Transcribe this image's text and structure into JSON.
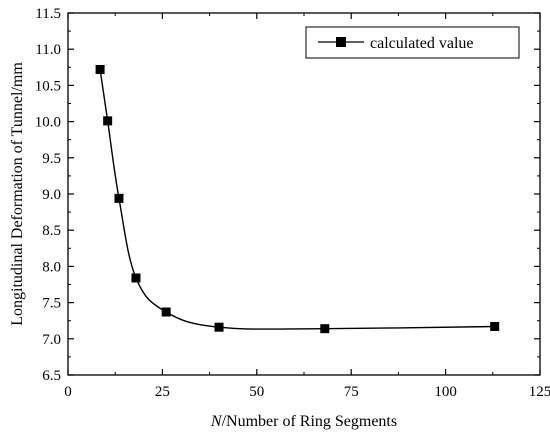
{
  "chart_data": {
    "type": "scatter",
    "title": "",
    "xlabel_italic": "N",
    "xlabel_rest": "/Number of Ring Segments",
    "ylabel": "Longitudinal Deformation of Tunnel/mm",
    "xlim": [
      0,
      125
    ],
    "ylim": [
      6.5,
      11.5
    ],
    "xticks": [
      0,
      25,
      50,
      75,
      100,
      125
    ],
    "yticks": [
      6.5,
      7.0,
      7.5,
      8.0,
      8.5,
      9.0,
      9.5,
      10.0,
      10.5,
      11.0,
      11.5
    ],
    "grid": false,
    "legend_position": "top-right",
    "series": [
      {
        "name": "calculated value",
        "marker": "square",
        "line": "smooth",
        "color": "#000000",
        "x": [
          8.5,
          10.5,
          13.5,
          18,
          26,
          40,
          68,
          113
        ],
        "y": [
          10.72,
          10.01,
          8.94,
          7.84,
          7.37,
          7.16,
          7.14,
          7.17
        ]
      }
    ]
  }
}
